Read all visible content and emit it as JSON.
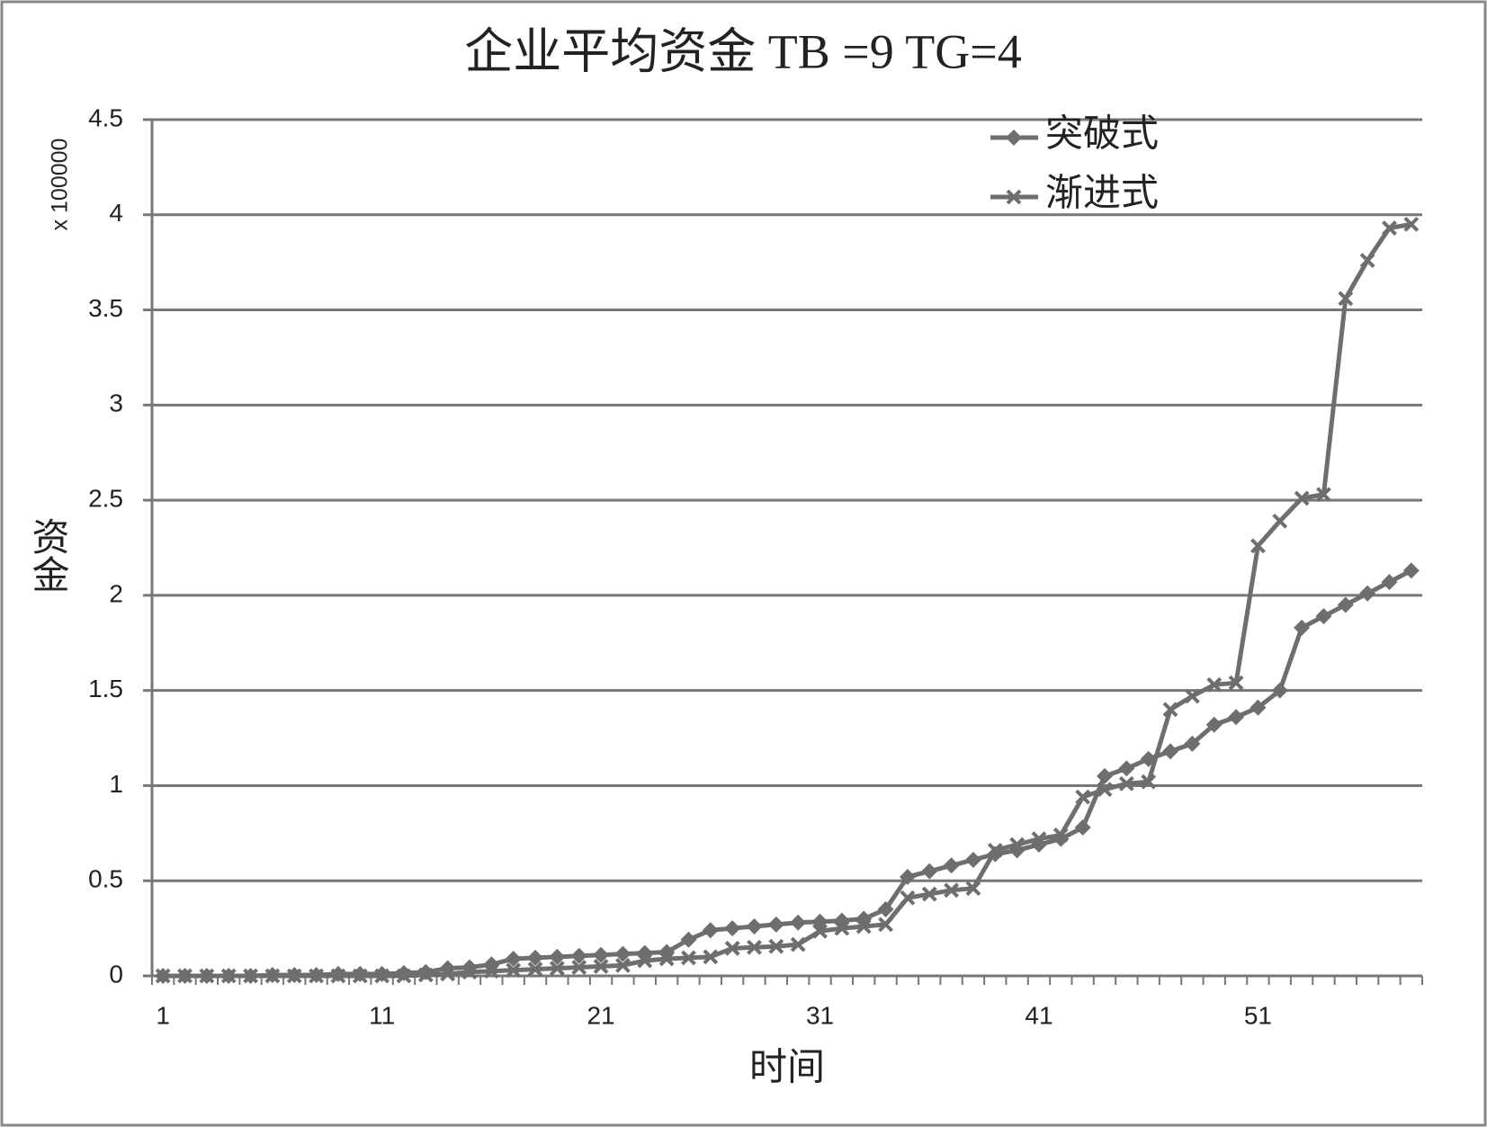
{
  "chart_data": {
    "type": "line",
    "title": "企业平均资金 TB =9 TG=4",
    "x_label": "时间",
    "y_label": "资金",
    "y_unit_label": "x 100000",
    "categories": [
      "1",
      null,
      null,
      null,
      null,
      null,
      null,
      null,
      null,
      null,
      "11",
      null,
      null,
      null,
      null,
      null,
      null,
      null,
      null,
      null,
      "21",
      null,
      null,
      null,
      null,
      null,
      null,
      null,
      null,
      null,
      "31",
      null,
      null,
      null,
      null,
      null,
      null,
      null,
      null,
      null,
      "41",
      null,
      null,
      null,
      null,
      null,
      null,
      null,
      null,
      null,
      "51",
      null,
      null,
      null,
      null,
      null,
      null,
      null
    ],
    "series": [
      {
        "name": "突破式",
        "color": "#6e6e6e",
        "marker": "diamond",
        "values": [
          0,
          0,
          0,
          0,
          0,
          0.005,
          0.005,
          0.005,
          0.01,
          0.01,
          0.01,
          0.015,
          0.02,
          0.04,
          0.045,
          0.06,
          0.09,
          0.095,
          0.1,
          0.105,
          0.11,
          0.115,
          0.12,
          0.125,
          0.19,
          0.24,
          0.25,
          0.26,
          0.27,
          0.28,
          0.285,
          0.29,
          0.3,
          0.35,
          0.52,
          0.55,
          0.58,
          0.61,
          0.64,
          0.66,
          0.69,
          0.72,
          0.78,
          1.05,
          1.09,
          1.14,
          1.18,
          1.22,
          1.32,
          1.36,
          1.41,
          1.5,
          1.83,
          1.89,
          1.95,
          2.01,
          2.07,
          2.13
        ]
      },
      {
        "name": "渐进式",
        "color": "#6e6e6e",
        "marker": "x",
        "values": [
          0,
          0,
          0,
          0,
          0,
          0,
          0,
          0,
          0,
          0,
          0,
          0,
          0.005,
          0.01,
          0.02,
          0.025,
          0.03,
          0.035,
          0.04,
          0.045,
          0.05,
          0.055,
          0.08,
          0.09,
          0.095,
          0.1,
          0.145,
          0.15,
          0.155,
          0.165,
          0.235,
          0.25,
          0.26,
          0.27,
          0.41,
          0.43,
          0.45,
          0.46,
          0.66,
          0.69,
          0.72,
          0.74,
          0.94,
          0.98,
          1.01,
          1.02,
          1.4,
          1.47,
          1.53,
          1.54,
          2.26,
          2.39,
          2.51,
          2.53,
          3.56,
          3.76,
          3.93,
          3.95
        ]
      }
    ],
    "ylim": [
      0,
      4.5
    ],
    "yticks": [
      0,
      0.5,
      1,
      1.5,
      2,
      2.5,
      3,
      3.5,
      4,
      4.5
    ],
    "grid": true,
    "legend": "top-right"
  }
}
